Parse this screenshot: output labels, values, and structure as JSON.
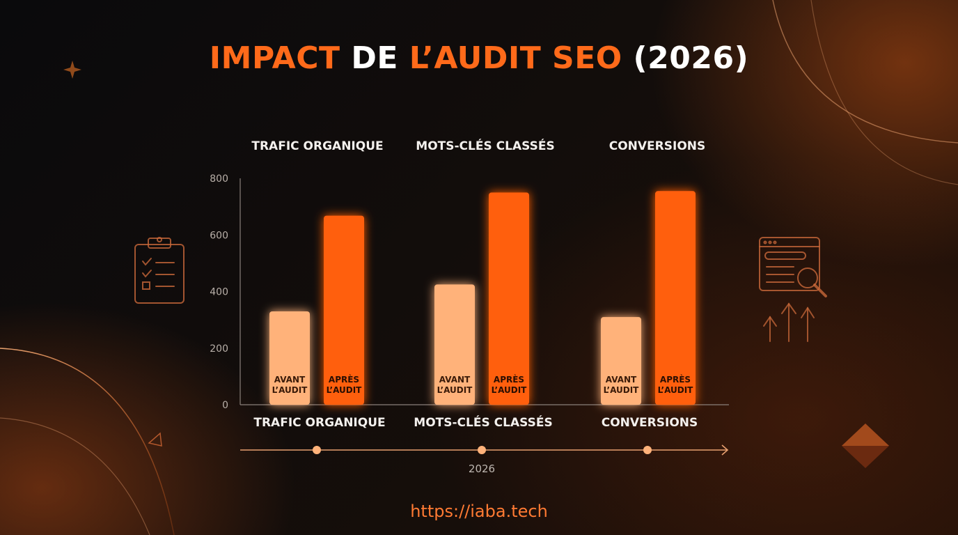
{
  "title": {
    "part1": "IMPACT",
    "part2": "DE",
    "part3": "L’AUDIT SEO",
    "part4": "(2026)"
  },
  "chart_data": {
    "type": "bar",
    "title": "IMPACT DE L’AUDIT SEO (2026)",
    "categories": [
      "TRAFIC ORGANIQUE",
      "MOTS-CLÉS CLASSÉS",
      "CONVERSIONS"
    ],
    "series": [
      {
        "name": "AVANT L’AUDIT",
        "values": [
          330,
          425,
          310
        ],
        "color": "#ffb27a"
      },
      {
        "name": "APRÈS L’AUDIT",
        "values": [
          668,
          750,
          755
        ],
        "color": "#ff5e0e"
      }
    ],
    "bar_labels": [
      [
        "AVANT",
        "L’AUDIT"
      ],
      [
        "APRÈS",
        "L’AUDIT"
      ]
    ],
    "yticks": [
      "0",
      "200",
      "400",
      "600",
      "800"
    ],
    "ylim": [
      0,
      800
    ],
    "timeline_label": "2026",
    "grid": false,
    "legend": "none"
  },
  "footer": {
    "url": "https://iaba.tech"
  },
  "colors": {
    "accent": "#ff6a1a",
    "light_bar": "#ffb27a",
    "dark_bar": "#ff5e0e"
  },
  "icons": [
    "sparkle-icon",
    "clipboard-checklist-icon",
    "browser-search-icon",
    "growth-arrows-icon",
    "diamond-icon",
    "triangle-icon"
  ]
}
